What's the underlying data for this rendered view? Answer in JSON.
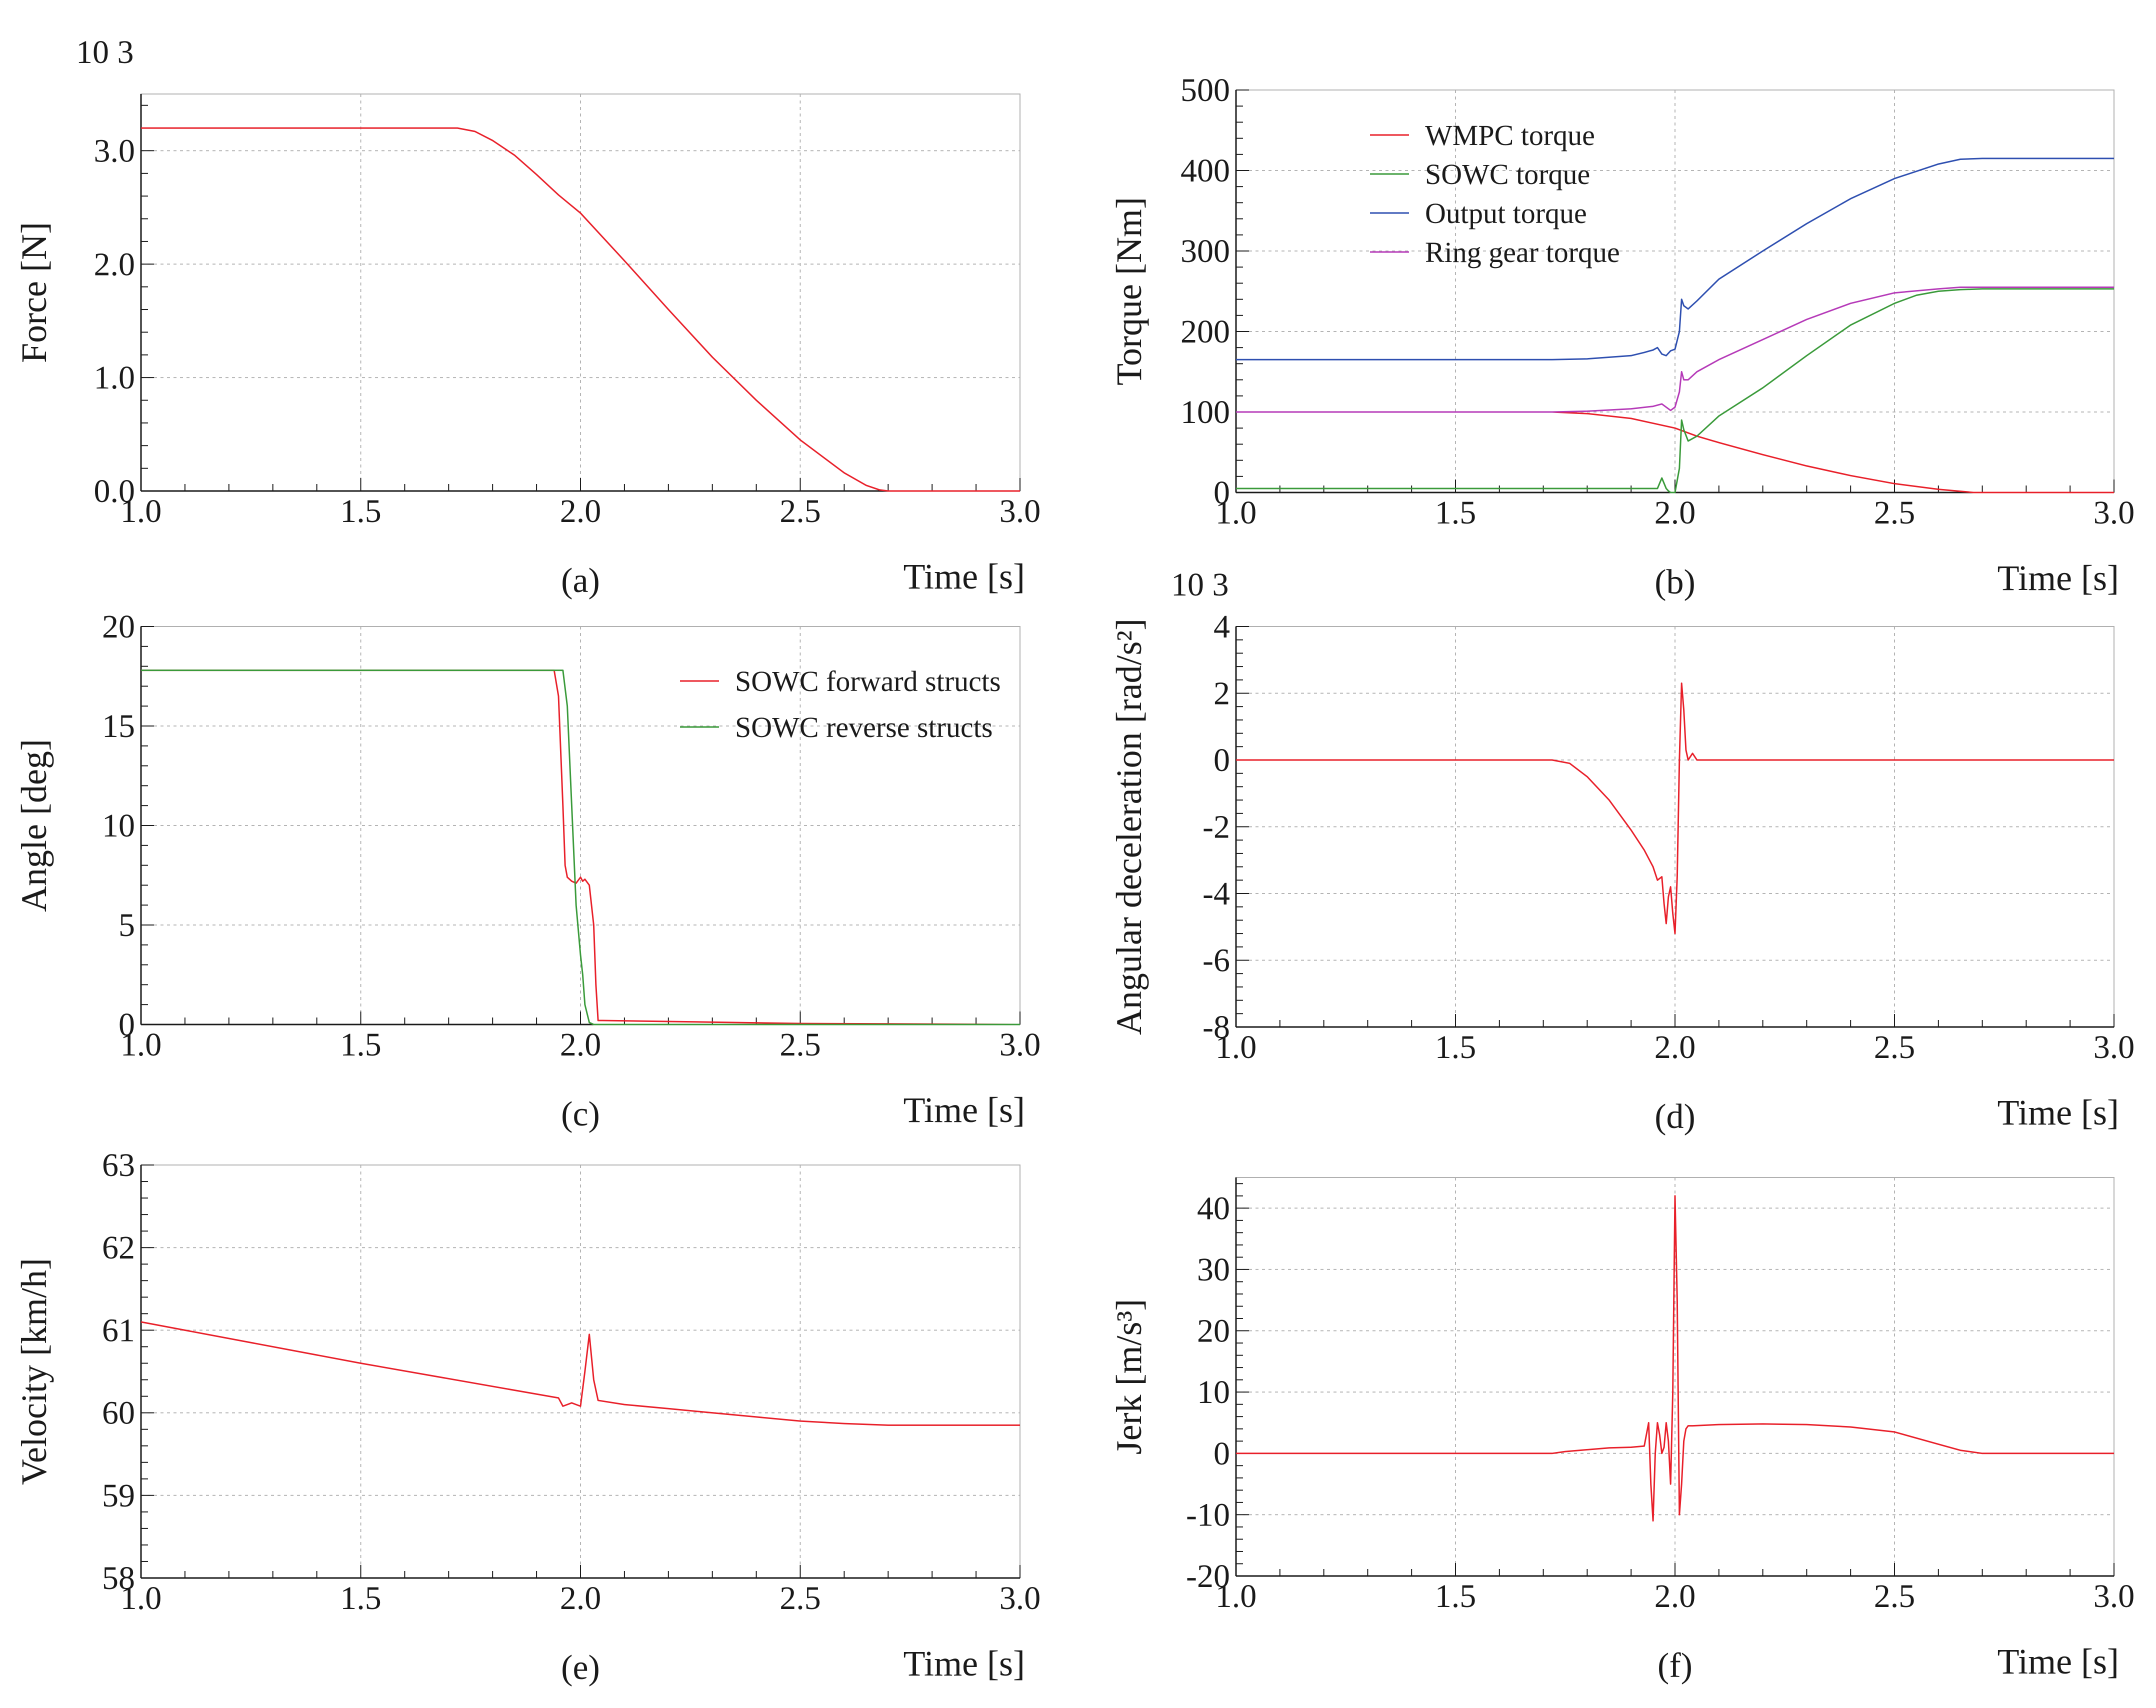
{
  "chart_data": [
    {
      "id": "a",
      "type": "line",
      "caption": "(a)",
      "ylabel": "Force [N]",
      "xlabel": "Time [s]",
      "yexp": "10 3",
      "xlim": [
        1.0,
        3.0
      ],
      "ylim": [
        0.0,
        3.5
      ],
      "xticks": [
        "1.0",
        "1.5",
        "2.0",
        "2.5",
        "3.0"
      ],
      "yticks": [
        {
          "v": 0,
          "t": "0.0"
        },
        {
          "v": 1,
          "t": "1.0"
        },
        {
          "v": 2,
          "t": "2.0"
        },
        {
          "v": 3,
          "t": "3.0"
        }
      ],
      "series": [
        {
          "name": "Force",
          "color": "#e8202a",
          "x": [
            1.0,
            1.72,
            1.76,
            1.8,
            1.85,
            1.9,
            1.95,
            2.0,
            2.1,
            2.2,
            2.3,
            2.4,
            2.5,
            2.6,
            2.65,
            2.68,
            2.7,
            3.0
          ],
          "y": [
            3.2,
            3.2,
            3.17,
            3.09,
            2.96,
            2.79,
            2.61,
            2.45,
            2.03,
            1.6,
            1.18,
            0.8,
            0.45,
            0.16,
            0.05,
            0.01,
            0.0,
            0.0
          ]
        }
      ]
    },
    {
      "id": "b",
      "type": "line",
      "caption": "(b)",
      "ylabel": "Torque [Nm]",
      "xlabel": "Time [s]",
      "xlim": [
        1.0,
        3.0
      ],
      "ylim": [
        0,
        500
      ],
      "xticks": [
        "1.0",
        "1.5",
        "2.0",
        "2.5",
        "3.0"
      ],
      "yticks": [
        {
          "v": 0,
          "t": "0"
        },
        {
          "v": 100,
          "t": "100"
        },
        {
          "v": 200,
          "t": "200"
        },
        {
          "v": 300,
          "t": "300"
        },
        {
          "v": 400,
          "t": "400"
        },
        {
          "v": 500,
          "t": "500"
        }
      ],
      "legend": "top-left",
      "series": [
        {
          "name": "WMPC torque",
          "color": "#e8202a",
          "x": [
            1.0,
            1.72,
            1.8,
            1.9,
            2.0,
            2.05,
            2.1,
            2.2,
            2.3,
            2.4,
            2.5,
            2.6,
            2.68,
            3.0
          ],
          "y": [
            100,
            100,
            98,
            92,
            80,
            70,
            62,
            47,
            33,
            21,
            11,
            4,
            0,
            0
          ]
        },
        {
          "name": "SOWC torque",
          "color": "#3a9a3a",
          "x": [
            1.0,
            1.93,
            1.94,
            1.96,
            1.97,
            1.98,
            1.985,
            1.99,
            2.0,
            2.01,
            2.015,
            2.02,
            2.03,
            2.05,
            2.1,
            2.2,
            2.3,
            2.4,
            2.5,
            2.55,
            2.6,
            2.65,
            2.7,
            3.0
          ],
          "y": [
            5,
            5,
            5,
            5,
            18,
            5,
            2,
            0,
            0,
            30,
            90,
            78,
            64,
            70,
            95,
            130,
            170,
            208,
            235,
            245,
            250,
            252,
            253,
            253
          ]
        },
        {
          "name": "Output torque",
          "color": "#2e4fb0",
          "x": [
            1.0,
            1.72,
            1.8,
            1.9,
            1.93,
            1.95,
            1.96,
            1.97,
            1.98,
            1.99,
            2.0,
            2.01,
            2.015,
            2.02,
            2.03,
            2.05,
            2.1,
            2.2,
            2.3,
            2.4,
            2.5,
            2.6,
            2.65,
            2.7,
            3.0
          ],
          "y": [
            165,
            165,
            166,
            170,
            174,
            177,
            180,
            172,
            170,
            176,
            178,
            200,
            240,
            232,
            228,
            238,
            265,
            300,
            334,
            365,
            390,
            408,
            414,
            415,
            415
          ]
        },
        {
          "name": "Ring gear torque",
          "color": "#b53ab8",
          "x": [
            1.0,
            1.72,
            1.8,
            1.9,
            1.95,
            1.97,
            1.99,
            2.0,
            2.01,
            2.015,
            2.02,
            2.03,
            2.05,
            2.1,
            2.2,
            2.3,
            2.4,
            2.5,
            2.6,
            2.65,
            2.7,
            3.0
          ],
          "y": [
            100,
            100,
            101,
            104,
            107,
            110,
            102,
            106,
            125,
            150,
            140,
            140,
            150,
            165,
            190,
            215,
            235,
            248,
            253,
            255,
            255,
            255
          ]
        }
      ]
    },
    {
      "id": "c",
      "type": "line",
      "caption": "(c)",
      "ylabel": "Angle [deg]",
      "xlabel": "Time [s]",
      "xlim": [
        1.0,
        3.0
      ],
      "ylim": [
        0,
        20
      ],
      "xticks": [
        "1.0",
        "1.5",
        "2.0",
        "2.5",
        "3.0"
      ],
      "yticks": [
        {
          "v": 0,
          "t": "0"
        },
        {
          "v": 5,
          "t": "5"
        },
        {
          "v": 10,
          "t": "10"
        },
        {
          "v": 15,
          "t": "15"
        },
        {
          "v": 20,
          "t": "20"
        }
      ],
      "legend": "top-right",
      "series": [
        {
          "name": "SOWC forward structs",
          "color": "#e8202a",
          "x": [
            1.0,
            1.94,
            1.95,
            1.96,
            1.965,
            1.97,
            1.98,
            1.99,
            2.0,
            2.005,
            2.01,
            2.02,
            2.03,
            2.035,
            2.04,
            2.05,
            2.5,
            3.0
          ],
          "y": [
            17.8,
            17.8,
            16.5,
            11.0,
            8.0,
            7.4,
            7.2,
            7.1,
            7.4,
            7.2,
            7.3,
            7.0,
            5.0,
            2.0,
            0.2,
            0.2,
            0.05,
            0.0
          ]
        },
        {
          "name": "SOWC reverse structs",
          "color": "#3a9a3a",
          "x": [
            1.0,
            1.96,
            1.97,
            1.98,
            1.99,
            2.0,
            2.005,
            2.01,
            2.02,
            2.03,
            2.5,
            3.0
          ],
          "y": [
            17.8,
            17.8,
            16.0,
            11.0,
            6.0,
            3.5,
            2.5,
            1.0,
            0.1,
            0.0,
            0.0,
            0.0
          ]
        }
      ]
    },
    {
      "id": "d",
      "type": "line",
      "caption": "(d)",
      "ylabel": "Angular deceleration [rad/s²]",
      "xlabel": "Time [s]",
      "yexp": "10 3",
      "xlim": [
        1.0,
        3.0
      ],
      "ylim": [
        -8,
        4
      ],
      "xticks": [
        "1.0",
        "1.5",
        "2.0",
        "2.5",
        "3.0"
      ],
      "yticks": [
        {
          "v": -8,
          "t": "-8"
        },
        {
          "v": -6,
          "t": "-6"
        },
        {
          "v": -4,
          "t": "-4"
        },
        {
          "v": -2,
          "t": "-2"
        },
        {
          "v": 0,
          "t": "0"
        },
        {
          "v": 2,
          "t": "2"
        },
        {
          "v": 4,
          "t": "4"
        }
      ],
      "series": [
        {
          "name": "Angular deceleration",
          "color": "#e8202a",
          "x": [
            1.0,
            1.72,
            1.76,
            1.8,
            1.85,
            1.9,
            1.93,
            1.95,
            1.96,
            1.97,
            1.975,
            1.98,
            1.985,
            1.99,
            1.995,
            2.0,
            2.005,
            2.01,
            2.015,
            2.02,
            2.025,
            2.03,
            2.04,
            2.05,
            3.0
          ],
          "y": [
            0,
            0,
            -0.1,
            -0.5,
            -1.2,
            -2.1,
            -2.7,
            -3.2,
            -3.6,
            -3.5,
            -4.3,
            -4.9,
            -4.1,
            -3.8,
            -4.6,
            -5.2,
            -3.5,
            0.0,
            2.3,
            1.5,
            0.3,
            0.0,
            0.2,
            0.0,
            0.0
          ]
        }
      ]
    },
    {
      "id": "e",
      "type": "line",
      "caption": "(e)",
      "ylabel": "Velocity [km/h]",
      "xlabel": "Time [s]",
      "xlim": [
        1.0,
        3.0
      ],
      "ylim": [
        58,
        63
      ],
      "xticks": [
        "1.0",
        "1.5",
        "2.0",
        "2.5",
        "3.0"
      ],
      "yticks": [
        {
          "v": 58,
          "t": "58"
        },
        {
          "v": 59,
          "t": "59"
        },
        {
          "v": 60,
          "t": "60"
        },
        {
          "v": 61,
          "t": "61"
        },
        {
          "v": 62,
          "t": "62"
        },
        {
          "v": 63,
          "t": "63"
        }
      ],
      "series": [
        {
          "name": "Velocity",
          "color": "#e8202a",
          "x": [
            1.0,
            1.5,
            1.95,
            1.96,
            1.97,
            1.98,
            1.99,
            2.0,
            2.01,
            2.02,
            2.03,
            2.04,
            2.1,
            2.2,
            2.3,
            2.4,
            2.5,
            2.6,
            2.7,
            3.0
          ],
          "y": [
            61.1,
            60.6,
            60.18,
            60.08,
            60.1,
            60.12,
            60.1,
            60.08,
            60.5,
            60.95,
            60.4,
            60.15,
            60.1,
            60.05,
            60.0,
            59.95,
            59.9,
            59.87,
            59.85,
            59.85
          ]
        }
      ]
    },
    {
      "id": "f",
      "type": "line",
      "caption": "(f)",
      "ylabel": "Jerk [m/s³]",
      "xlabel": "Time [s]",
      "xlim": [
        1.0,
        3.0
      ],
      "ylim": [
        -20,
        45
      ],
      "xticks": [
        "1.0",
        "1.5",
        "2.0",
        "2.5",
        "3.0"
      ],
      "yticks": [
        {
          "v": -20,
          "t": "-20"
        },
        {
          "v": -10,
          "t": "-10"
        },
        {
          "v": 0,
          "t": "0"
        },
        {
          "v": 10,
          "t": "10"
        },
        {
          "v": 20,
          "t": "20"
        },
        {
          "v": 30,
          "t": "30"
        },
        {
          "v": 40,
          "t": "40"
        }
      ],
      "series": [
        {
          "name": "Jerk",
          "color": "#e8202a",
          "x": [
            1.0,
            1.72,
            1.75,
            1.8,
            1.85,
            1.9,
            1.93,
            1.94,
            1.945,
            1.95,
            1.955,
            1.96,
            1.965,
            1.97,
            1.975,
            1.98,
            1.985,
            1.99,
            1.995,
            2.0,
            2.005,
            2.01,
            2.015,
            2.02,
            2.025,
            2.03,
            2.04,
            2.1,
            2.2,
            2.3,
            2.4,
            2.5,
            2.6,
            2.65,
            2.7,
            3.0
          ],
          "y": [
            0,
            0,
            0.3,
            0.6,
            0.9,
            1.0,
            1.2,
            5.0,
            -5.0,
            -11.0,
            0.0,
            5.0,
            3.0,
            0.0,
            1.0,
            5.0,
            2.0,
            -5.0,
            10.0,
            42.0,
            25.0,
            -10.0,
            -5.0,
            2.0,
            4.0,
            4.5,
            4.5,
            4.7,
            4.8,
            4.7,
            4.3,
            3.5,
            1.5,
            0.5,
            0.0,
            0.0
          ]
        }
      ]
    }
  ]
}
